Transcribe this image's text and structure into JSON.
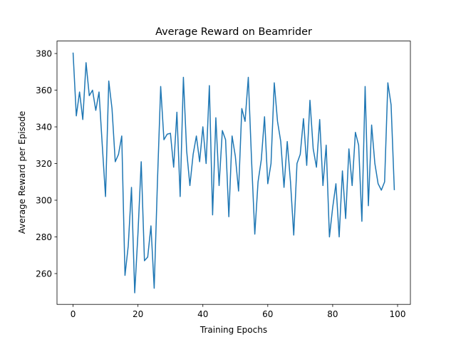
{
  "chart_data": {
    "type": "line",
    "title": "Average Reward on Beamrider",
    "x_label": "Training Epochs",
    "y_label": "Average Reward per Episode",
    "x": [
      0,
      1,
      2,
      3,
      4,
      5,
      6,
      7,
      8,
      9,
      10,
      11,
      12,
      13,
      14,
      15,
      16,
      17,
      18,
      19,
      20,
      21,
      22,
      23,
      24,
      25,
      26,
      27,
      28,
      29,
      30,
      31,
      32,
      33,
      34,
      35,
      36,
      37,
      38,
      39,
      40,
      41,
      42,
      43,
      44,
      45,
      46,
      47,
      48,
      49,
      50,
      51,
      52,
      53,
      54,
      55,
      56,
      57,
      58,
      59,
      60,
      61,
      62,
      63,
      64,
      65,
      66,
      67,
      68,
      69,
      70,
      71,
      72,
      73,
      74,
      75,
      76,
      77,
      78,
      79,
      80,
      81,
      82,
      83,
      84,
      85,
      86,
      87,
      88,
      89,
      90,
      91,
      92,
      93,
      94,
      95,
      96,
      97,
      98,
      99
    ],
    "series": [
      {
        "name": "Average Reward",
        "color": "#1f77b4",
        "values": [
          380.5,
          346,
          359,
          344,
          375,
          357,
          360,
          349,
          359,
          330,
          302,
          365,
          350,
          321,
          325,
          335,
          259,
          275,
          307,
          249.5,
          282,
          321,
          267,
          269,
          286,
          252,
          310,
          362,
          333,
          336,
          336.5,
          318,
          348,
          302,
          367,
          327,
          308,
          325,
          335,
          321,
          340,
          320,
          362.5,
          292,
          345,
          308,
          338,
          333,
          291,
          335,
          324,
          305,
          350,
          343,
          367,
          322,
          281.5,
          310,
          322,
          345.5,
          309,
          320,
          364,
          343,
          332,
          307,
          332,
          310,
          281,
          320,
          325,
          344.5,
          319,
          354.5,
          328,
          318,
          344,
          308,
          330,
          280,
          296,
          309,
          280,
          316,
          290,
          328,
          308,
          337,
          330,
          288.5,
          362,
          297,
          341,
          320,
          309,
          305.5,
          310,
          364,
          352,
          305.5
        ]
      }
    ],
    "xlim": [
      -4.95,
      103.95
    ],
    "ylim": [
      243.2,
      386.8
    ],
    "xticks": [
      0,
      20,
      40,
      60,
      80,
      100
    ],
    "yticks": [
      260,
      280,
      300,
      320,
      340,
      360,
      380
    ]
  }
}
